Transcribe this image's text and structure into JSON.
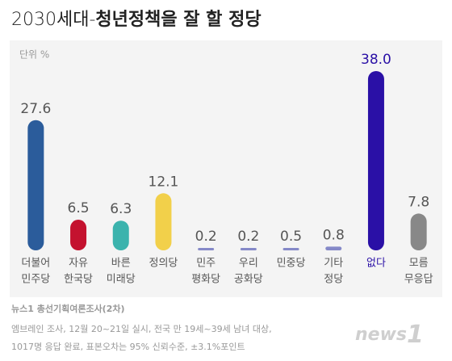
{
  "chart_data": {
    "type": "bar",
    "title_prefix": "2030세대-",
    "title": "청년정책을 잘 할 정당",
    "unit_label": "단위 %",
    "categories": [
      [
        "더불어",
        "민주당"
      ],
      [
        "자유",
        "한국당"
      ],
      [
        "바른",
        "미래당"
      ],
      [
        "정의당"
      ],
      [
        "민주",
        "평화당"
      ],
      [
        "우리",
        "공화당"
      ],
      [
        "민중당"
      ],
      [
        "기타",
        "정당"
      ],
      [
        "없다"
      ],
      [
        "모름",
        "무응답"
      ]
    ],
    "values": [
      27.6,
      6.5,
      6.3,
      12.1,
      0.2,
      0.2,
      0.5,
      0.8,
      38.0,
      7.8
    ],
    "value_labels": [
      "27.6",
      "6.5",
      "6.3",
      "12.1",
      "0.2",
      "0.2",
      "0.5",
      "0.8",
      "38.0",
      "7.8"
    ],
    "colors": [
      "#2b5c9b",
      "#c4122f",
      "#3bb3ad",
      "#f2d04a",
      "#8589c8",
      "#8589c8",
      "#8589c8",
      "#8589c8",
      "#2a10a6",
      "#888888"
    ],
    "label_colors": [
      "#555555",
      "#555555",
      "#555555",
      "#555555",
      "#555555",
      "#555555",
      "#555555",
      "#555555",
      "#2a10a6",
      "#555555"
    ],
    "source": "뉴스1 총선기획여론조사(2차)",
    "notes": [
      "엠브레인 조사, 12월 20~21일 실시, 전국 만 19세~39세 남녀 대상,",
      "1017명 응답 완료, 표본오차는 95% 신뢰수준, ±3.1%포인트"
    ],
    "logo": [
      "news",
      "1"
    ]
  }
}
